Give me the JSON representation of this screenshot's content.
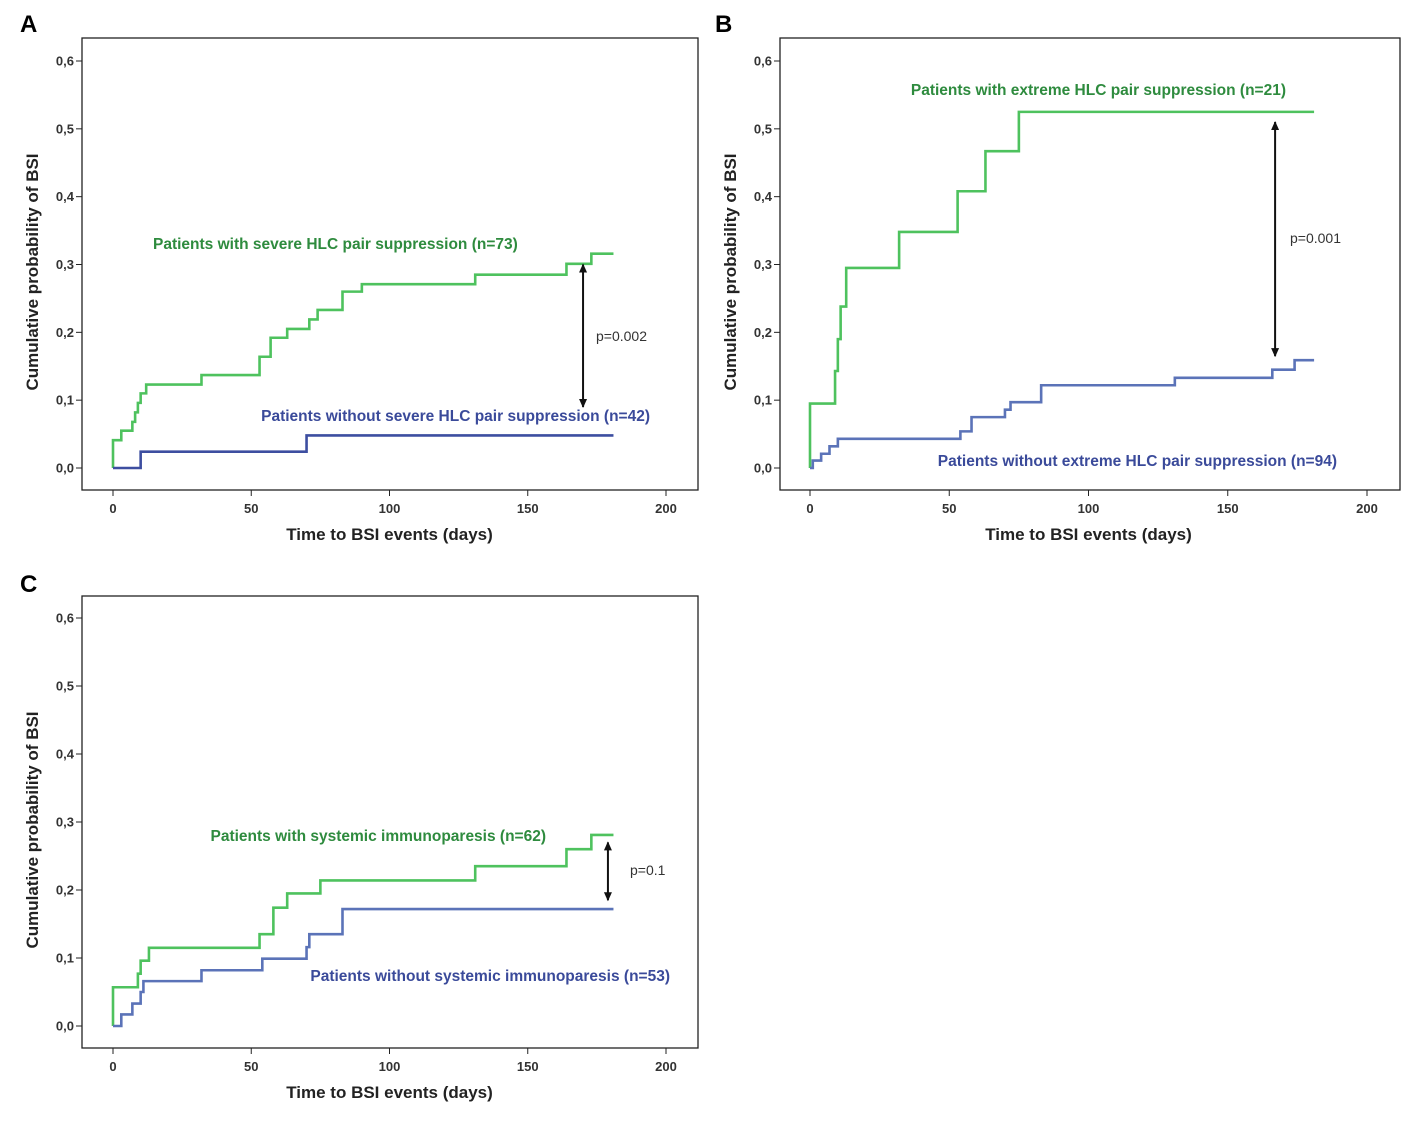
{
  "colors": {
    "green": "#4ec25e",
    "blue": "#5b73b8",
    "dark_blue": "#3d4ea0",
    "green_text": "#2e8b3e",
    "blue_text": "#3a4a9a",
    "arrow": "#111111"
  },
  "chart_data": [
    {
      "panel": "A",
      "type": "line",
      "step": true,
      "xlabel": "Time to BSI events (days)",
      "ylabel": "Cumulative probability of BSI",
      "xlim": [
        0,
        200
      ],
      "ylim": [
        0,
        0.6
      ],
      "xticks": [
        "0",
        "50",
        "100",
        "150",
        "200"
      ],
      "yticks": [
        "0,0",
        "0,1",
        "0,2",
        "0,3",
        "0,4",
        "0,5",
        "0,6"
      ],
      "series": [
        {
          "name": "Patients with severe HLC pair suppression (n=73)",
          "color": "green",
          "points": [
            [
              0,
              0
            ],
            [
              0,
              0.041
            ],
            [
              3,
              0.055
            ],
            [
              7,
              0.068
            ],
            [
              8,
              0.082
            ],
            [
              9,
              0.096
            ],
            [
              10,
              0.11
            ],
            [
              12,
              0.123
            ],
            [
              32,
              0.137
            ],
            [
              53,
              0.164
            ],
            [
              57,
              0.192
            ],
            [
              63,
              0.205
            ],
            [
              71,
              0.219
            ],
            [
              74,
              0.233
            ],
            [
              83,
              0.26
            ],
            [
              90,
              0.271
            ],
            [
              131,
              0.285
            ],
            [
              164,
              0.301
            ],
            [
              173,
              0.316
            ],
            [
              181,
              0.316
            ]
          ]
        },
        {
          "name": "Patients without severe HLC pair suppression (n=42)",
          "color": "dark_blue",
          "points": [
            [
              0,
              0
            ],
            [
              10,
              0.024
            ],
            [
              70,
              0.048
            ],
            [
              181,
              0.048
            ]
          ]
        }
      ],
      "annotation": {
        "text": "p=0.002",
        "x": 170,
        "y_top": 0.3,
        "y_bottom": 0.09
      },
      "label_positions": {
        "series0": [
          153,
          244,
          "start"
        ],
        "series1": [
          650,
          416,
          "end"
        ],
        "pval": [
          596,
          341
        ]
      }
    },
    {
      "panel": "B",
      "type": "line",
      "step": true,
      "xlabel": "Time to BSI events (days)",
      "ylabel": "Cumulative probability of BSI",
      "xlim": [
        0,
        200
      ],
      "ylim": [
        0,
        0.6
      ],
      "xticks": [
        "0",
        "50",
        "100",
        "150",
        "200"
      ],
      "yticks": [
        "0,0",
        "0,1",
        "0,2",
        "0,3",
        "0,4",
        "0,5",
        "0,6"
      ],
      "series": [
        {
          "name": "Patients with extreme HLC pair suppression (n=21)",
          "color": "green",
          "points": [
            [
              0,
              0
            ],
            [
              0,
              0.095
            ],
            [
              9,
              0.143
            ],
            [
              10,
              0.19
            ],
            [
              11,
              0.238
            ],
            [
              13,
              0.295
            ],
            [
              32,
              0.348
            ],
            [
              53,
              0.408
            ],
            [
              63,
              0.467
            ],
            [
              75,
              0.525
            ],
            [
              181,
              0.525
            ]
          ]
        },
        {
          "name": "Patients without extreme HLC pair suppression (n=94)",
          "color": "blue",
          "points": [
            [
              0,
              0
            ],
            [
              1,
              0.011
            ],
            [
              4,
              0.021
            ],
            [
              7,
              0.032
            ],
            [
              10,
              0.043
            ],
            [
              54,
              0.054
            ],
            [
              58,
              0.075
            ],
            [
              70,
              0.086
            ],
            [
              72,
              0.097
            ],
            [
              83,
              0.122
            ],
            [
              131,
              0.133
            ],
            [
              166,
              0.145
            ],
            [
              174,
              0.159
            ],
            [
              181,
              0.159
            ]
          ]
        }
      ],
      "annotation": {
        "text": "p=0.001",
        "x": 167,
        "y_top": 0.51,
        "y_bottom": 0.165
      },
      "label_positions": {
        "series0": [
          1286,
          90,
          "end"
        ],
        "series1": [
          1337,
          461,
          "end"
        ],
        "pval": [
          1290,
          243
        ]
      }
    },
    {
      "panel": "C",
      "type": "line",
      "step": true,
      "xlabel": "Time to BSI events (days)",
      "ylabel": "Cumulative probability of BSI",
      "xlim": [
        0,
        200
      ],
      "ylim": [
        0,
        0.6
      ],
      "xticks": [
        "0",
        "50",
        "100",
        "150",
        "200"
      ],
      "yticks": [
        "0,0",
        "0,1",
        "0,2",
        "0,3",
        "0,4",
        "0,5",
        "0,6"
      ],
      "series": [
        {
          "name": "Patients with systemic immunoparesis (n=62)",
          "color": "green",
          "points": [
            [
              0,
              0
            ],
            [
              0,
              0.057
            ],
            [
              9,
              0.077
            ],
            [
              10,
              0.096
            ],
            [
              13,
              0.115
            ],
            [
              53,
              0.135
            ],
            [
              58,
              0.174
            ],
            [
              63,
              0.195
            ],
            [
              75,
              0.214
            ],
            [
              131,
              0.235
            ],
            [
              164,
              0.26
            ],
            [
              173,
              0.281
            ],
            [
              181,
              0.281
            ]
          ]
        },
        {
          "name": "Patients without systemic immunoparesis (n=53)",
          "color": "blue",
          "points": [
            [
              0,
              0
            ],
            [
              3,
              0.017
            ],
            [
              7,
              0.033
            ],
            [
              10,
              0.05
            ],
            [
              11,
              0.066
            ],
            [
              32,
              0.082
            ],
            [
              54,
              0.099
            ],
            [
              70,
              0.116
            ],
            [
              71,
              0.135
            ],
            [
              83,
              0.172
            ],
            [
              181,
              0.172
            ]
          ]
        }
      ],
      "annotation": {
        "text": "p=0.1",
        "x": 179,
        "y_top": 0.27,
        "y_bottom": 0.185
      },
      "label_positions": {
        "series0": [
          546,
          836,
          "end"
        ],
        "series1": [
          670,
          976,
          "end"
        ],
        "pval": [
          630,
          875
        ]
      }
    }
  ]
}
